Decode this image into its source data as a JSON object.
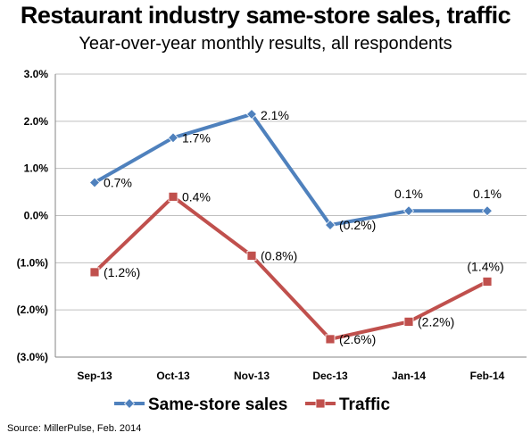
{
  "colors": {
    "same_store": "#4f81bd",
    "traffic": "#c0504d",
    "gridline": "#bfbfbf",
    "axis": "#868686"
  },
  "chart_data": {
    "type": "line",
    "title": "Restaurant industry same-store sales, traffic",
    "subtitle": "Year-over-year monthly results, all respondents",
    "categories": [
      "Sep-13",
      "Oct-13",
      "Nov-13",
      "Dec-13",
      "Jan-14",
      "Feb-14"
    ],
    "ylim": [
      -3.0,
      3.0
    ],
    "yticks": [
      3.0,
      2.0,
      1.0,
      0.0,
      -1.0,
      -2.0,
      -3.0
    ],
    "ytick_labels": [
      "3.0%",
      "2.0%",
      "1.0%",
      "0.0%",
      "(1.0%)",
      "(2.0%)",
      "(3.0%)"
    ],
    "grid": true,
    "legend_position": "bottom",
    "series": [
      {
        "name": "Same-store sales",
        "marker": "diamond",
        "color_key": "same_store",
        "values": [
          0.7,
          1.65,
          2.15,
          -0.2,
          0.1,
          0.1
        ],
        "labels": [
          "0.7%",
          "1.7%",
          "2.1%",
          "(0.2%)",
          "0.1%",
          "0.1%"
        ]
      },
      {
        "name": "Traffic",
        "marker": "square",
        "color_key": "traffic",
        "values": [
          -1.2,
          0.4,
          -0.85,
          -2.62,
          -2.25,
          -1.4
        ],
        "labels": [
          "(1.2%)",
          "0.4%",
          "(0.8%)",
          "(2.6%)",
          "(2.2%)",
          "(1.4%)"
        ]
      }
    ]
  },
  "source": "Source: MillerPulse, Feb. 2014"
}
